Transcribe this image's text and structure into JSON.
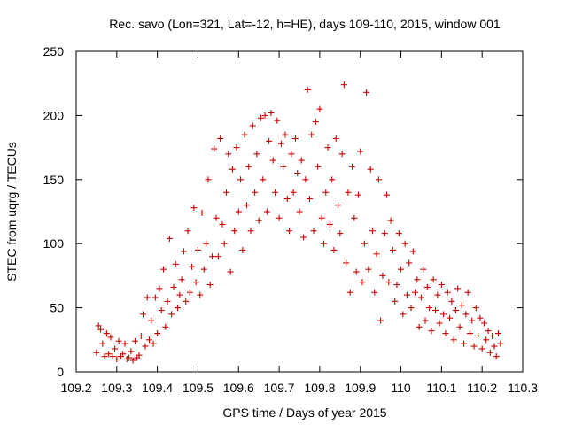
{
  "chart_data": {
    "type": "scatter",
    "title": "Rec. savo (Lon=321, Lat=-12, h=HE), days 109-110, 2015, window 001",
    "xlabel": "GPS time / Days of year 2015",
    "ylabel": "STEC from uqrg / TECUs",
    "xlim": [
      109.2,
      110.3
    ],
    "ylim": [
      0,
      250
    ],
    "x_ticks": [
      "109.2",
      "109.3",
      "109.4",
      "109.5",
      "109.6",
      "109.7",
      "109.8",
      "109.9",
      "110",
      "110.1",
      "110.2",
      "110.3"
    ],
    "y_ticks": [
      "0",
      "50",
      "100",
      "150",
      "200",
      "250"
    ],
    "grid": false,
    "marker": "+",
    "color": "#cc0000",
    "series": [
      {
        "name": "",
        "points": [
          [
            109.25,
            15
          ],
          [
            109.255,
            36
          ],
          [
            109.26,
            33
          ],
          [
            109.265,
            22
          ],
          [
            109.27,
            12
          ],
          [
            109.275,
            30
          ],
          [
            109.28,
            14
          ],
          [
            109.285,
            27
          ],
          [
            109.29,
            12
          ],
          [
            109.295,
            18
          ],
          [
            109.3,
            10
          ],
          [
            109.305,
            24
          ],
          [
            109.31,
            12
          ],
          [
            109.315,
            14
          ],
          [
            109.32,
            22
          ],
          [
            109.325,
            10
          ],
          [
            109.33,
            11
          ],
          [
            109.335,
            16
          ],
          [
            109.34,
            9
          ],
          [
            109.345,
            24
          ],
          [
            109.35,
            11
          ],
          [
            109.355,
            13
          ],
          [
            109.36,
            28
          ],
          [
            109.365,
            45
          ],
          [
            109.37,
            20
          ],
          [
            109.375,
            58
          ],
          [
            109.38,
            25
          ],
          [
            109.385,
            40
          ],
          [
            109.39,
            22
          ],
          [
            109.395,
            58
          ],
          [
            109.4,
            30
          ],
          [
            109.405,
            65
          ],
          [
            109.41,
            48
          ],
          [
            109.415,
            80
          ],
          [
            109.42,
            35
          ],
          [
            109.425,
            55
          ],
          [
            109.43,
            104
          ],
          [
            109.435,
            45
          ],
          [
            109.44,
            66
          ],
          [
            109.445,
            84
          ],
          [
            109.45,
            50
          ],
          [
            109.455,
            60
          ],
          [
            109.46,
            72
          ],
          [
            109.465,
            94
          ],
          [
            109.47,
            55
          ],
          [
            109.475,
            110
          ],
          [
            109.48,
            62
          ],
          [
            109.485,
            82
          ],
          [
            109.49,
            128
          ],
          [
            109.495,
            70
          ],
          [
            109.5,
            95
          ],
          [
            109.505,
            60
          ],
          [
            109.51,
            124
          ],
          [
            109.515,
            80
          ],
          [
            109.52,
            100
          ],
          [
            109.525,
            150
          ],
          [
            109.53,
            68
          ],
          [
            109.535,
            90
          ],
          [
            109.54,
            174
          ],
          [
            109.545,
            120
          ],
          [
            109.55,
            90
          ],
          [
            109.555,
            182
          ],
          [
            109.56,
            115
          ],
          [
            109.565,
            100
          ],
          [
            109.57,
            140
          ],
          [
            109.575,
            170
          ],
          [
            109.58,
            78
          ],
          [
            109.585,
            158
          ],
          [
            109.59,
            110
          ],
          [
            109.595,
            175
          ],
          [
            109.6,
            125
          ],
          [
            109.605,
            150
          ],
          [
            109.61,
            95
          ],
          [
            109.615,
            185
          ],
          [
            109.62,
            130
          ],
          [
            109.625,
            160
          ],
          [
            109.63,
            110
          ],
          [
            109.635,
            192
          ],
          [
            109.64,
            140
          ],
          [
            109.645,
            170
          ],
          [
            109.65,
            118
          ],
          [
            109.655,
            198
          ],
          [
            109.66,
            150
          ],
          [
            109.665,
            200
          ],
          [
            109.67,
            125
          ],
          [
            109.675,
            180
          ],
          [
            109.68,
            202
          ],
          [
            109.685,
            165
          ],
          [
            109.69,
            140
          ],
          [
            109.695,
            196
          ],
          [
            109.7,
            120
          ],
          [
            109.705,
            178
          ],
          [
            109.71,
            160
          ],
          [
            109.715,
            185
          ],
          [
            109.72,
            135
          ],
          [
            109.725,
            110
          ],
          [
            109.73,
            170
          ],
          [
            109.735,
            140
          ],
          [
            109.74,
            182
          ],
          [
            109.745,
            155
          ],
          [
            109.75,
            125
          ],
          [
            109.755,
            165
          ],
          [
            109.76,
            105
          ],
          [
            109.765,
            150
          ],
          [
            109.77,
            220
          ],
          [
            109.775,
            135
          ],
          [
            109.78,
            185
          ],
          [
            109.785,
            110
          ],
          [
            109.79,
            195
          ],
          [
            109.795,
            160
          ],
          [
            109.8,
            205
          ],
          [
            109.805,
            120
          ],
          [
            109.81,
            100
          ],
          [
            109.815,
            140
          ],
          [
            109.82,
            175
          ],
          [
            109.825,
            115
          ],
          [
            109.83,
            150
          ],
          [
            109.835,
            95
          ],
          [
            109.84,
            182
          ],
          [
            109.845,
            130
          ],
          [
            109.85,
            108
          ],
          [
            109.855,
            170
          ],
          [
            109.86,
            224
          ],
          [
            109.865,
            85
          ],
          [
            109.87,
            140
          ],
          [
            109.875,
            62
          ],
          [
            109.88,
            160
          ],
          [
            109.885,
            120
          ],
          [
            109.89,
            78
          ],
          [
            109.895,
            138
          ],
          [
            109.9,
            172
          ],
          [
            109.905,
            70
          ],
          [
            109.91,
            100
          ],
          [
            109.915,
            218
          ],
          [
            109.92,
            80
          ],
          [
            109.925,
            158
          ],
          [
            109.93,
            110
          ],
          [
            109.935,
            62
          ],
          [
            109.94,
            92
          ],
          [
            109.945,
            150
          ],
          [
            109.95,
            40
          ],
          [
            109.955,
            75
          ],
          [
            109.96,
            108
          ],
          [
            109.965,
            138
          ],
          [
            109.97,
            70
          ],
          [
            109.975,
            118
          ],
          [
            109.98,
            95
          ],
          [
            109.985,
            55
          ],
          [
            109.99,
            68
          ],
          [
            109.995,
            108
          ],
          [
            110.0,
            80
          ],
          [
            110.005,
            45
          ],
          [
            110.01,
            100
          ],
          [
            110.015,
            60
          ],
          [
            110.02,
            85
          ],
          [
            110.025,
            50
          ],
          [
            110.03,
            94
          ],
          [
            110.035,
            62
          ],
          [
            110.04,
            72
          ],
          [
            110.045,
            35
          ],
          [
            110.05,
            58
          ],
          [
            110.055,
            80
          ],
          [
            110.06,
            40
          ],
          [
            110.065,
            66
          ],
          [
            110.07,
            50
          ],
          [
            110.075,
            32
          ],
          [
            110.08,
            72
          ],
          [
            110.085,
            48
          ],
          [
            110.09,
            60
          ],
          [
            110.095,
            38
          ],
          [
            110.1,
            68
          ],
          [
            110.105,
            45
          ],
          [
            110.11,
            30
          ],
          [
            110.115,
            62
          ],
          [
            110.12,
            42
          ],
          [
            110.125,
            55
          ],
          [
            110.13,
            25
          ],
          [
            110.135,
            48
          ],
          [
            110.14,
            65
          ],
          [
            110.145,
            35
          ],
          [
            110.15,
            52
          ],
          [
            110.155,
            22
          ],
          [
            110.16,
            45
          ],
          [
            110.165,
            62
          ],
          [
            110.17,
            30
          ],
          [
            110.175,
            40
          ],
          [
            110.18,
            20
          ],
          [
            110.185,
            50
          ],
          [
            110.19,
            28
          ],
          [
            110.195,
            42
          ],
          [
            110.2,
            18
          ],
          [
            110.205,
            38
          ],
          [
            110.21,
            25
          ],
          [
            110.215,
            32
          ],
          [
            110.22,
            15
          ],
          [
            110.225,
            28
          ],
          [
            110.23,
            20
          ],
          [
            110.235,
            12
          ],
          [
            110.24,
            30
          ],
          [
            110.245,
            22
          ]
        ]
      }
    ]
  }
}
